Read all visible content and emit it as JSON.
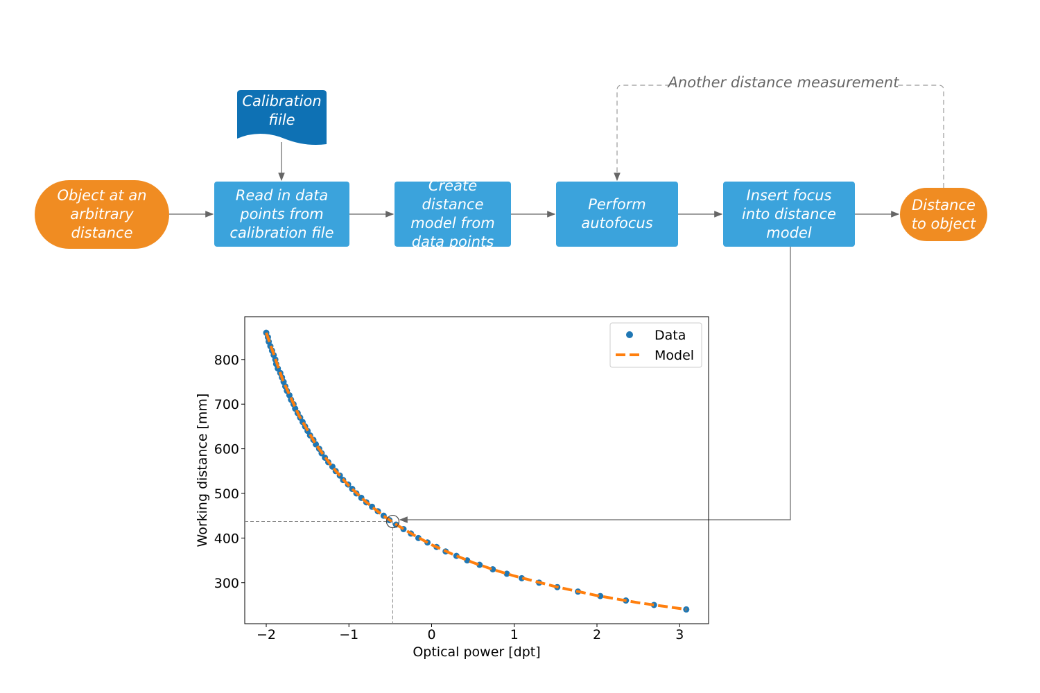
{
  "nodes": [
    {
      "label": "Object at an arbitrary distance"
    },
    {
      "label": "Read in data points from calibration file"
    },
    {
      "label": "Create distance model from data points"
    },
    {
      "label": "Perform autofocus"
    },
    {
      "label": "Insert focus into distance model"
    },
    {
      "label": "Distance to object"
    }
  ],
  "document": {
    "label": "Calibration fiile"
  },
  "loop_label": "Another distance measurement",
  "chart_data": {
    "type": "scatter",
    "xlabel": "Optical power [dpt]",
    "ylabel": "Working distance [mm]",
    "xlim": [
      -2.26,
      3.35
    ],
    "ylim": [
      208,
      896
    ],
    "xticks": [
      {
        "value": -2,
        "label": "−2"
      },
      {
        "value": -1,
        "label": "−1"
      },
      0,
      1,
      2,
      3
    ],
    "yticks": [
      300,
      400,
      500,
      600,
      700,
      800
    ],
    "legend": "upper right",
    "highlight": {
      "x": -0.47,
      "y": 437
    },
    "series": [
      {
        "name": "Data",
        "type": "scatter",
        "color": "#1f77b4",
        "x": [
          -2.0,
          -1.98,
          -1.97,
          -1.95,
          -1.93,
          -1.91,
          -1.89,
          -1.88,
          -1.86,
          -1.83,
          -1.81,
          -1.79,
          -1.77,
          -1.75,
          -1.72,
          -1.7,
          -1.67,
          -1.65,
          -1.62,
          -1.59,
          -1.56,
          -1.53,
          -1.5,
          -1.47,
          -1.43,
          -1.4,
          -1.36,
          -1.33,
          -1.29,
          -1.25,
          -1.2,
          -1.16,
          -1.11,
          -1.07,
          -1.01,
          -0.96,
          -0.91,
          -0.85,
          -0.79,
          -0.72,
          -0.65,
          -0.58,
          -0.51,
          -0.43,
          -0.34,
          -0.25,
          -0.16,
          -0.05,
          0.06,
          0.17,
          0.3,
          0.43,
          0.58,
          0.74,
          0.91,
          1.09,
          1.3,
          1.52,
          1.77,
          2.04,
          2.35,
          2.69,
          3.08
        ],
        "values": [
          860,
          850,
          840,
          830,
          820,
          810,
          800,
          790,
          780,
          770,
          760,
          750,
          740,
          730,
          720,
          710,
          700,
          690,
          680,
          670,
          660,
          650,
          640,
          630,
          620,
          610,
          600,
          590,
          580,
          570,
          560,
          550,
          540,
          530,
          520,
          510,
          500,
          490,
          480,
          470,
          460,
          450,
          440,
          430,
          420,
          410,
          400,
          390,
          380,
          370,
          360,
          350,
          340,
          330,
          320,
          310,
          300,
          290,
          280,
          270,
          260,
          250,
          240
        ]
      },
      {
        "name": "Model",
        "type": "line",
        "color": "#ff7f0e",
        "x": [
          -2,
          -1.8,
          -1.6,
          -1.4,
          -1.2,
          -1,
          -0.8,
          -0.6,
          -0.4,
          -0.2,
          0,
          0.25,
          0.5,
          0.75,
          1,
          1.5,
          2,
          2.5,
          3.08
        ],
        "values": [
          860,
          754,
          673,
          610,
          559,
          517,
          482,
          452,
          427,
          405,
          385,
          364,
          345,
          329,
          315,
          291,
          271,
          255,
          240
        ]
      }
    ]
  }
}
